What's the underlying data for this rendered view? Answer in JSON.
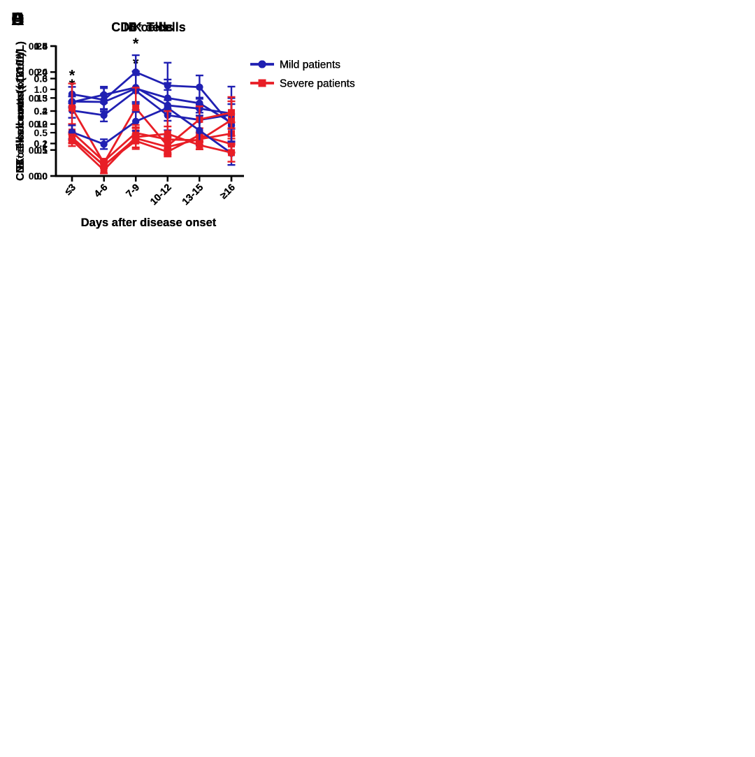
{
  "figure": {
    "background": "#ffffff",
    "axis_color": "#000000",
    "xlabel": "Days after disease onset",
    "categories": [
      "≤3",
      "4-6",
      "7-9",
      "10-12",
      "13-15",
      "≥16"
    ],
    "legend": {
      "position": "right",
      "entries": [
        {
          "label": "Mild patients",
          "color": "#2020b2",
          "marker": "circle"
        },
        {
          "label": "Severe patients",
          "color": "#e81e26",
          "marker": "square"
        }
      ]
    }
  },
  "chart_data": [
    {
      "type": "line",
      "panel_label": "A",
      "title": "CD3⁺ T cells",
      "xlabel": "Days after disease onset",
      "ylabel": "CD3⁺ T cell counts (x10⁹/L)",
      "categories": [
        "≤3",
        "4-6",
        "7-9",
        "10-12",
        "13-15",
        "≥16"
      ],
      "ylim": [
        0,
        1.5
      ],
      "ytick_step": 0.5,
      "ytick_decimals": 1,
      "grid": false,
      "series": [
        {
          "name": "Mild patients",
          "color": "#2020b2",
          "marker": "circle",
          "values": [
            0.86,
            0.855,
            1.01,
            0.9,
            0.84,
            0.615
          ],
          "errors": [
            0.06,
            0.09,
            0.155,
            0.175,
            0.065,
            0.215
          ]
        },
        {
          "name": "Severe patients",
          "color": "#e81e26",
          "marker": "square",
          "values": [
            0.445,
            0.12,
            0.435,
            0.335,
            0.425,
            0.49
          ],
          "errors": [
            0.06,
            0.025,
            0.05,
            0.08,
            0.035,
            0.13
          ]
        }
      ],
      "significance": [
        {
          "category": "≤3",
          "index": 0,
          "label": "*"
        },
        {
          "category": "7-9",
          "index": 2,
          "label": "*"
        }
      ]
    },
    {
      "type": "line",
      "panel_label": "B",
      "title": "CD8⁺ T cells",
      "xlabel": "Days after disease onset",
      "ylabel": "CD8⁺ T cell counts (x10⁹/L)",
      "categories": [
        "≤3",
        "4-6",
        "7-9",
        "10-12",
        "13-15",
        "≥16"
      ],
      "ylim": [
        0,
        0.5
      ],
      "ytick_step": 0.1,
      "ytick_decimals": 1,
      "grid": false,
      "series": [
        {
          "name": "Mild patients",
          "color": "#2020b2",
          "marker": "circle",
          "values": [
            0.315,
            0.293,
            0.4,
            0.348,
            0.342,
            0.195
          ],
          "errors": [
            0.028,
            0.045,
            0.065,
            0.088,
            0.045,
            0.105
          ]
        },
        {
          "name": "Severe patients",
          "color": "#e81e26",
          "marker": "square",
          "values": [
            0.145,
            0.042,
            0.135,
            0.093,
            0.158,
            0.123
          ],
          "errors": [
            0.02,
            0.012,
            0.025,
            0.012,
            0.026,
            0.032
          ]
        }
      ],
      "significance": [
        {
          "category": "≤3",
          "index": 0,
          "label": "*"
        },
        {
          "category": "7-9",
          "index": 2,
          "label": "*"
        }
      ]
    },
    {
      "type": "line",
      "panel_label": "C",
      "title": "CD4⁺ T cells",
      "xlabel": "Days after disease onset",
      "ylabel": "CD4⁺ T cell counts (x10⁹/L)",
      "categories": [
        "≤3",
        "4-6",
        "7-9",
        "10-12",
        "13-15",
        "≥16"
      ],
      "ylim": [
        0,
        0.8
      ],
      "ytick_step": 0.2,
      "ytick_decimals": 1,
      "grid": false,
      "series": [
        {
          "name": "Mild patients",
          "color": "#2020b2",
          "marker": "circle",
          "values": [
            0.455,
            0.5,
            0.545,
            0.435,
            0.415,
            0.385
          ],
          "errors": [
            0.035,
            0.05,
            0.1,
            0.095,
            0.025,
            0.095
          ]
        },
        {
          "name": "Severe patients",
          "color": "#e81e26",
          "marker": "square",
          "values": [
            0.27,
            0.09,
            0.265,
            0.225,
            0.22,
            0.345
          ],
          "errors": [
            0.05,
            0.015,
            0.035,
            0.08,
            0.03,
            0.115
          ]
        }
      ],
      "significance": []
    },
    {
      "type": "line",
      "panel_label": "D",
      "title": "B cells",
      "xlabel": "Days after disease onset",
      "ylabel": "B cells counts (x10⁹/L)",
      "categories": [
        "≤3",
        "4-6",
        "7-9",
        "10-12",
        "13-15",
        "≥16"
      ],
      "ylim": [
        0,
        0.25
      ],
      "ytick_step": 0.05,
      "ytick_decimals": 2,
      "grid": false,
      "series": [
        {
          "name": "Mild patients",
          "color": "#2020b2",
          "marker": "circle",
          "values": [
            0.126,
            0.117,
            0.164,
            0.117,
            0.108,
            0.118
          ],
          "errors": [
            0.014,
            0.012,
            0.037,
            0.029,
            0.025,
            0.054
          ]
        },
        {
          "name": "Severe patients",
          "color": "#e81e26",
          "marker": "square",
          "values": [
            0.131,
            0.025,
            0.131,
            0.058,
            0.109,
            0.122
          ],
          "errors": [
            0.047,
            0.006,
            0.039,
            0.016,
            0.025,
            0.03
          ]
        }
      ],
      "significance": []
    },
    {
      "type": "line",
      "panel_label": "E",
      "title": "NK cells",
      "xlabel": "Days after disease onset",
      "ylabel": "NK cells counts (x10⁹/L)",
      "categories": [
        "≤3",
        "4-6",
        "7-9",
        "10-12",
        "13-15",
        "≥16"
      ],
      "ylim": [
        0,
        0.4
      ],
      "ytick_step": 0.1,
      "ytick_decimals": 1,
      "grid": false,
      "series": [
        {
          "name": "Mild patients",
          "color": "#2020b2",
          "marker": "circle",
          "values": [
            0.135,
            0.098,
            0.168,
            0.21,
            0.14,
            0.07
          ],
          "errors": [
            0.021,
            0.015,
            0.029,
            0.087,
            0.046,
            0.036
          ]
        },
        {
          "name": "Severe patients",
          "color": "#e81e26",
          "marker": "square",
          "values": [
            0.11,
            0.018,
            0.12,
            0.13,
            0.095,
            0.072
          ],
          "errors": [
            0.018,
            0.01,
            0.037,
            0.07,
            0.013,
            0.028
          ]
        }
      ],
      "significance": []
    }
  ]
}
